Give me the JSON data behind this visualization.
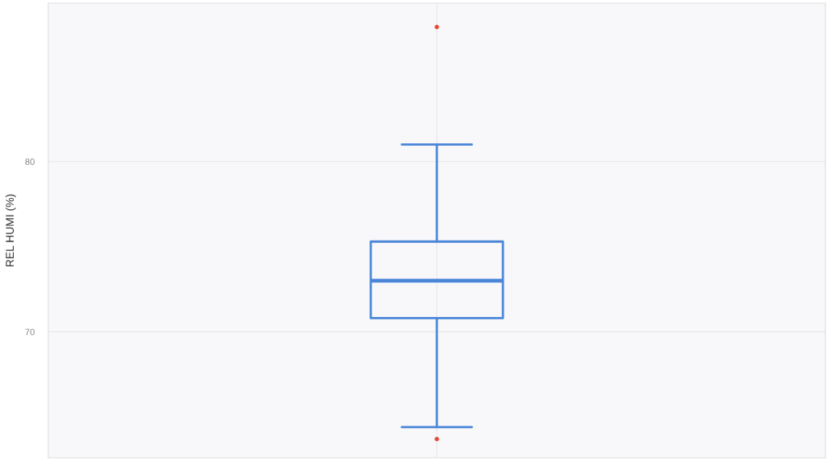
{
  "chart_data": {
    "type": "box",
    "ylabel": "REL HUMI (%)",
    "categories": [
      null
    ],
    "series": [
      {
        "color": "#4a86d8",
        "boxes": [
          {
            "low": 64.4,
            "q1": 70.8,
            "median": 73.0,
            "q3": 75.3,
            "high": 81.0
          }
        ]
      },
      {
        "type": "scatter",
        "color": "#e8483a",
        "x": [
          null,
          null
        ],
        "values": [
          87.9,
          63.7
        ]
      }
    ],
    "ylim": [
      62.6,
      89.3
    ],
    "yticks": [
      70,
      80
    ],
    "grid": true
  }
}
